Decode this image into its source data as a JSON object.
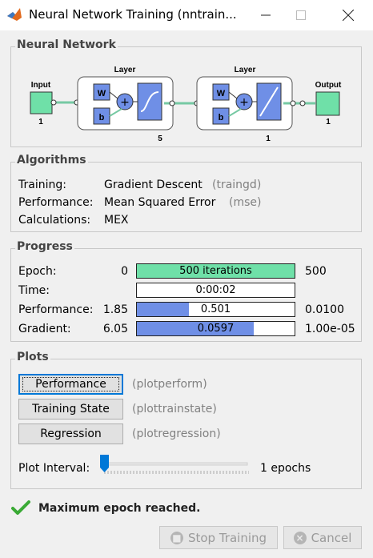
{
  "window": {
    "title": "Neural Network Training (nntrain..."
  },
  "network": {
    "title": "Neural Network",
    "input_label": "Input",
    "input_size": "1",
    "layer1": {
      "label": "Layer",
      "size": "5",
      "w": "W",
      "b": "b"
    },
    "layer2": {
      "label": "Layer",
      "size": "1",
      "w": "W",
      "b": "b"
    },
    "output_label": "Output",
    "output_size": "1"
  },
  "algorithms": {
    "title": "Algorithms",
    "training_label": "Training:",
    "training_value": "Gradient Descent",
    "training_code": "(traingd)",
    "performance_label": "Performance:",
    "performance_value": "Mean Squared Error",
    "performance_code": "(mse)",
    "calculations_label": "Calculations:",
    "calculations_value": "MEX"
  },
  "progress": {
    "title": "Progress",
    "rows": [
      {
        "label": "Epoch:",
        "start": "0",
        "value": "500 iterations",
        "end": "500",
        "fill": 1.0,
        "color": "#6fe0a8"
      },
      {
        "label": "Time:",
        "start": "",
        "value": "0:00:02",
        "end": "",
        "fill": 0.0,
        "color": "#ffffff"
      },
      {
        "label": "Performance:",
        "start": "1.85",
        "value": "0.501",
        "end": "0.0100",
        "fill": 0.33,
        "color": "#6f8fe6"
      },
      {
        "label": "Gradient:",
        "start": "6.05",
        "value": "0.0597",
        "end": "1.00e-05",
        "fill": 0.74,
        "color": "#6f8fe6"
      }
    ]
  },
  "plots": {
    "title": "Plots",
    "buttons": [
      {
        "label": "Performance",
        "func": "(plotperform)"
      },
      {
        "label": "Training State",
        "func": "(plottrainstate)"
      },
      {
        "label": "Regression",
        "func": "(plotregression)"
      }
    ],
    "interval_label": "Plot Interval:",
    "interval_value": "1 epochs",
    "slider_level": 0.0
  },
  "status": {
    "message": "Maximum epoch reached."
  },
  "footer": {
    "stop_label": "Stop Training",
    "cancel_label": "Cancel"
  },
  "colors": {
    "accent": "#0078d7",
    "epoch_fill": "#6fe0a8",
    "bar_fill": "#6f8fe6",
    "check": "#3aaa35"
  }
}
